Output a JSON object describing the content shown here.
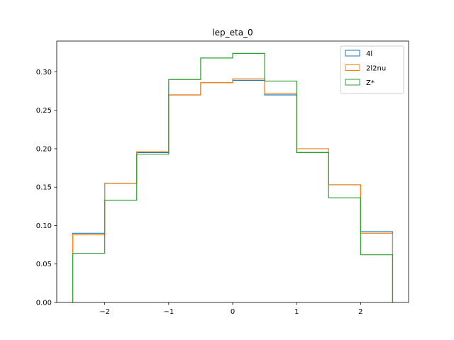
{
  "chart_data": {
    "type": "histogram-step",
    "title": "lep_eta_0",
    "xlabel": "",
    "ylabel": "",
    "xlim": [
      -2.75,
      2.75
    ],
    "ylim": [
      0.0,
      0.34
    ],
    "x_ticks": [
      -2,
      -1,
      0,
      1,
      2
    ],
    "x_tick_labels": [
      "−2",
      "−1",
      "0",
      "1",
      "2"
    ],
    "y_ticks": [
      0.0,
      0.05,
      0.1,
      0.15,
      0.2,
      0.25,
      0.3
    ],
    "y_tick_labels": [
      "0.00",
      "0.05",
      "0.10",
      "0.15",
      "0.20",
      "0.25",
      "0.30"
    ],
    "bin_edges": [
      -2.5,
      -2.0,
      -1.5,
      -1.0,
      -0.5,
      0.0,
      0.5,
      1.0,
      1.5,
      2.0,
      2.5
    ],
    "series": [
      {
        "name": "4l",
        "color": "#1f77b4",
        "values": [
          0.09,
          0.155,
          0.195,
          0.27,
          0.286,
          0.289,
          0.27,
          0.195,
          0.153,
          0.092
        ]
      },
      {
        "name": "2l2nu",
        "color": "#ff7f0e",
        "values": [
          0.088,
          0.155,
          0.196,
          0.27,
          0.286,
          0.291,
          0.272,
          0.2,
          0.153,
          0.09
        ]
      },
      {
        "name": "Z*",
        "color": "#2ca02c",
        "values": [
          0.064,
          0.133,
          0.193,
          0.29,
          0.318,
          0.324,
          0.288,
          0.195,
          0.136,
          0.062
        ]
      }
    ],
    "legend_position": "top-right",
    "grid": false
  }
}
